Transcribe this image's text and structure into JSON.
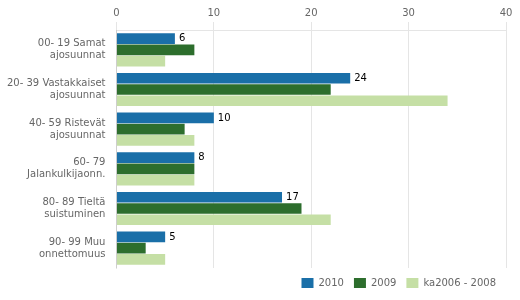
{
  "chart_data": {
    "type": "bar",
    "orientation": "horizontal",
    "categories": [
      "00- 19 Samat\najosuunnat",
      "20- 39 Vastakkaiset\najosuunnat",
      "40- 59 Ristevät\najosuunnat",
      "60- 79\nJalankulkijaonn.",
      "80- 89 Tieltä\nsuistuminen",
      "90- 99 Muu\nonnettomuus"
    ],
    "series": [
      {
        "name": "2010",
        "color": "#1a6fa8",
        "values": [
          6,
          24,
          10,
          8,
          17,
          5
        ],
        "data_labels": true
      },
      {
        "name": "2009",
        "color": "#2d6e2d",
        "values": [
          8,
          22,
          7,
          8,
          19,
          3
        ]
      },
      {
        "name": "ka2006 - 2008",
        "color": "#c5dfa5",
        "values": [
          5,
          34,
          8,
          8,
          22,
          5
        ]
      }
    ],
    "xlim": [
      0,
      40
    ],
    "xticks": [
      0,
      10,
      20,
      30,
      40
    ],
    "grid": true,
    "legend": "lower right"
  }
}
